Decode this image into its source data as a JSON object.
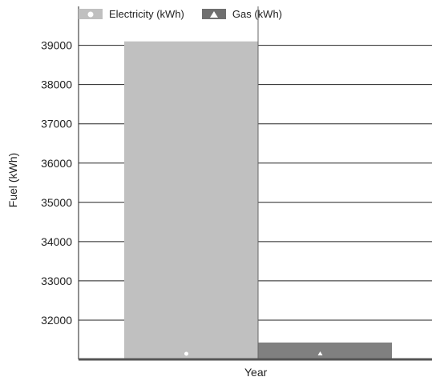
{
  "chart_data": {
    "type": "bar",
    "title": "",
    "xlabel": "Year",
    "ylabel": "Fuel (kWh)",
    "ylim": [
      31000,
      39500
    ],
    "yticks": [
      32000,
      33000,
      34000,
      35000,
      36000,
      37000,
      38000,
      39000
    ],
    "grid": "horizontal",
    "legend_position": "top",
    "series": [
      {
        "name": "Electricity (kWh)",
        "value": 39100,
        "color": "#c0c0c0",
        "marker": "circle"
      },
      {
        "name": "Gas (kWh)",
        "value": 31430,
        "color": "#808080",
        "marker": "triangle"
      }
    ]
  }
}
